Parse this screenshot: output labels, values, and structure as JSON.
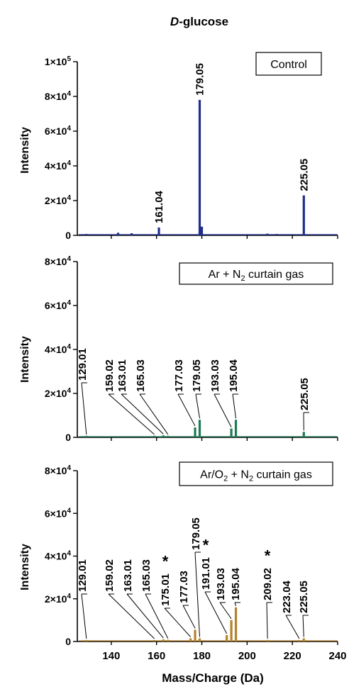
{
  "figure": {
    "title_prefix": "D",
    "title_suffix": "-glucose",
    "xlabel": "Mass/Charge (Da)",
    "ylabel": "Intensity",
    "xticks": [
      "140",
      "160",
      "180",
      "200",
      "220",
      "240"
    ]
  },
  "chart_data": [
    {
      "type": "bar",
      "legend": "Control",
      "color": "#1f2f8c",
      "xlim": [
        125,
        240
      ],
      "ylim": [
        0,
        100000
      ],
      "yticks": [
        {
          "mant": "0",
          "exp": ""
        },
        {
          "mant": "2×10",
          "exp": "4"
        },
        {
          "mant": "4×10",
          "exp": "4"
        },
        {
          "mant": "6×10",
          "exp": "4"
        },
        {
          "mant": "8×10",
          "exp": "4"
        },
        {
          "mant": "1×10",
          "exp": "5"
        }
      ],
      "x": [
        129,
        143,
        149,
        161.04,
        179.05,
        180,
        209,
        213,
        225.05
      ],
      "values": [
        800,
        1500,
        1200,
        4500,
        78000,
        5000,
        1000,
        800,
        23000
      ],
      "labels": [
        {
          "text": "161.04",
          "x": 161.04,
          "y": 4500
        },
        {
          "text": "179.05",
          "x": 179.05,
          "y": 78000
        },
        {
          "text": "225.05",
          "x": 225.05,
          "y": 23000
        }
      ]
    },
    {
      "type": "bar",
      "legend_parts": [
        "Ar + N",
        "2",
        " curtain gas"
      ],
      "color": "#1e7a55",
      "xlim": [
        125,
        240
      ],
      "ylim": [
        0,
        80000
      ],
      "yticks": [
        {
          "mant": "0",
          "exp": ""
        },
        {
          "mant": "2×10",
          "exp": "4"
        },
        {
          "mant": "4×10",
          "exp": "4"
        },
        {
          "mant": "6×10",
          "exp": "4"
        },
        {
          "mant": "8×10",
          "exp": "4"
        }
      ],
      "x": [
        129.01,
        159.02,
        161.5,
        163.01,
        165.03,
        177.03,
        179.05,
        193.03,
        195.04,
        225.05
      ],
      "values": [
        700,
        700,
        500,
        900,
        700,
        4500,
        8000,
        4000,
        8000,
        2500
      ],
      "labels": [
        {
          "text": "129.01",
          "x": 129.01,
          "y": 700
        },
        {
          "text": "159.02",
          "x": 159.02,
          "y": 700
        },
        {
          "text": "163.01",
          "x": 163.01,
          "y": 900
        },
        {
          "text": "165.03",
          "x": 165.03,
          "y": 700
        },
        {
          "text": "177.03",
          "x": 177.03,
          "y": 4500
        },
        {
          "text": "179.05",
          "x": 179.05,
          "y": 8000
        },
        {
          "text": "193.03",
          "x": 193.03,
          "y": 4000
        },
        {
          "text": "195.04",
          "x": 195.04,
          "y": 8000
        },
        {
          "text": "225.05",
          "x": 225.05,
          "y": 2500
        }
      ]
    },
    {
      "type": "bar",
      "legend_parts": [
        "Ar/O",
        "2",
        " + N",
        "2",
        " curtain gas"
      ],
      "color": "#b5812a",
      "xlim": [
        125,
        240
      ],
      "ylim": [
        0,
        80000
      ],
      "yticks": [
        {
          "mant": "0",
          "exp": ""
        },
        {
          "mant": "2×10",
          "exp": "4"
        },
        {
          "mant": "4×10",
          "exp": "4"
        },
        {
          "mant": "6×10",
          "exp": "4"
        },
        {
          "mant": "8×10",
          "exp": "4"
        }
      ],
      "x": [
        129.01,
        159.02,
        163.01,
        165.03,
        175.01,
        177.03,
        179.05,
        191.01,
        193.03,
        195.04,
        209.02,
        223.04,
        225.05
      ],
      "values": [
        700,
        700,
        1000,
        800,
        1500,
        5500,
        1500,
        3000,
        10000,
        16000,
        700,
        700,
        1500
      ],
      "labels": [
        {
          "text": "129.01",
          "x": 129.01,
          "y": 700
        },
        {
          "text": "159.02",
          "x": 159.02,
          "y": 700
        },
        {
          "text": "163.01",
          "x": 163.01,
          "y": 1000
        },
        {
          "text": "165.03",
          "x": 165.03,
          "y": 800
        },
        {
          "text": "175.01",
          "x": 175.01,
          "y": 1500,
          "star": true
        },
        {
          "text": "177.03",
          "x": 177.03,
          "y": 5500
        },
        {
          "text": "179.05",
          "x": 179.05,
          "y": 1500
        },
        {
          "text": "191.01",
          "x": 191.01,
          "y": 3000,
          "star": true
        },
        {
          "text": "193.03",
          "x": 193.03,
          "y": 10000
        },
        {
          "text": "195.04",
          "x": 195.04,
          "y": 16000
        },
        {
          "text": "209.02",
          "x": 209.02,
          "y": 700,
          "star": true
        },
        {
          "text": "223.04",
          "x": 223.04,
          "y": 700
        },
        {
          "text": "225.05",
          "x": 225.05,
          "y": 1500
        }
      ],
      "star_symbol": "*"
    }
  ]
}
